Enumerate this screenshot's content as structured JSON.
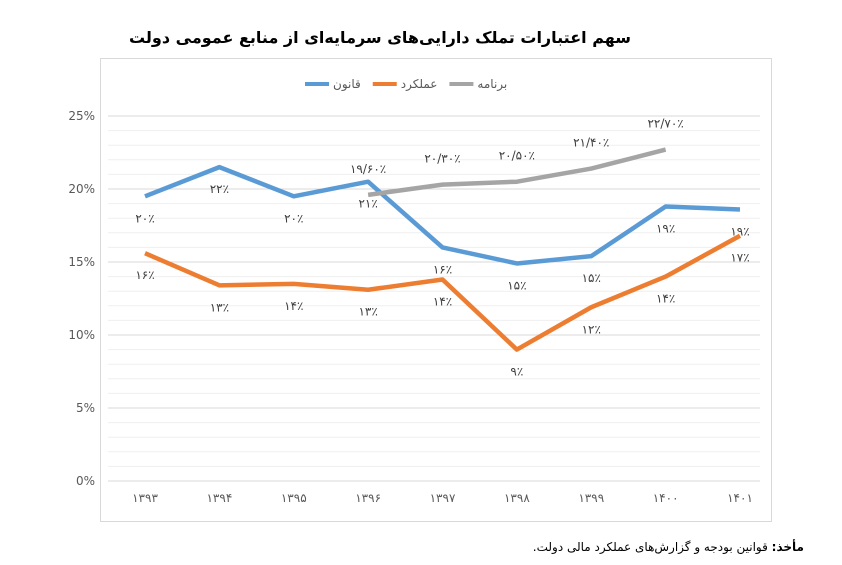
{
  "chart_data": {
    "type": "line",
    "title": "سهم اعتبارات تملک دارایی‌های سرمایه‌ای از منابع عمومی دولت",
    "categories": [
      "۱۳۹۳",
      "۱۳۹۴",
      "۱۳۹۵",
      "۱۳۹۶",
      "۱۳۹۷",
      "۱۳۹۸",
      "۱۳۹۹",
      "۱۴۰۰",
      "۱۴۰۱"
    ],
    "ylim": [
      0,
      25
    ],
    "yticks": [
      "0%",
      "5%",
      "10%",
      "15%",
      "20%",
      "25%"
    ],
    "grid": true,
    "legend_position": "top",
    "series": [
      {
        "name": "قانون",
        "color": "#5b9bd5",
        "values": [
          19.5,
          21.5,
          19.5,
          20.5,
          16.0,
          14.9,
          15.4,
          18.8,
          18.6
        ],
        "labels": [
          "۲۰٪",
          "۲۲٪",
          "۲۰٪",
          "۲۱٪",
          "۱۶٪",
          "۱۵٪",
          "۱۵٪",
          "۱۹٪",
          "۱۹٪"
        ]
      },
      {
        "name": "عملکرد",
        "color": "#ed7d31",
        "values": [
          15.6,
          13.4,
          13.5,
          13.1,
          13.8,
          9.0,
          11.9,
          14.0,
          16.8
        ],
        "labels": [
          "۱۶٪",
          "۱۳٪",
          "۱۴٪",
          "۱۳٪",
          "۱۴٪",
          "۹٪",
          "۱۲٪",
          "۱۴٪",
          "۱۷٪"
        ]
      },
      {
        "name": "برنامه",
        "color": "#a5a5a5",
        "values": [
          null,
          null,
          null,
          19.6,
          20.3,
          20.5,
          21.4,
          22.7,
          null
        ],
        "labels": [
          "",
          "",
          "",
          "۱۹/۶۰٪",
          "۲۰/۳۰٪",
          "۲۰/۵۰٪",
          "۲۱/۴۰٪",
          "۲۲/۷۰٪",
          ""
        ]
      }
    ]
  },
  "source": {
    "label": "مأخذ:",
    "text": " قوانین بودجه و گزارش‌های عملکرد مالی دولت."
  }
}
